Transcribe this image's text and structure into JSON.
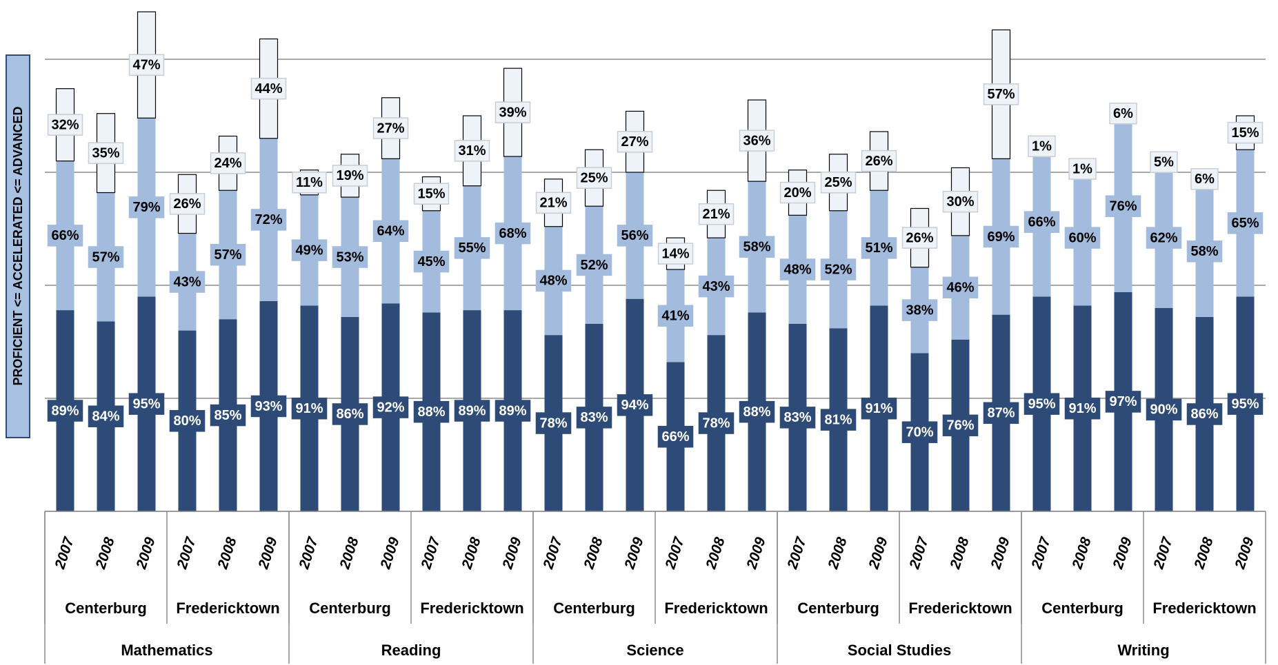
{
  "chart_data": {
    "type": "stacked-bar",
    "y_label": "PROFICIENT <= ACCELERATED <= ADVANCED",
    "categories": [
      "2007",
      "2008",
      "2009",
      "2007",
      "2008",
      "2009",
      "2007",
      "2008",
      "2009",
      "2007",
      "2008",
      "2009",
      "2007",
      "2008",
      "2009",
      "2007",
      "2008",
      "2009",
      "2007",
      "2008",
      "2009",
      "2007",
      "2008",
      "2009",
      "2007",
      "2008",
      "2009",
      "2007",
      "2008",
      "2009"
    ],
    "groups": [
      "Centerburg",
      "Fredericktown",
      "Centerburg",
      "Fredericktown",
      "Centerburg",
      "Fredericktown",
      "Centerburg",
      "Fredericktown",
      "Centerburg",
      "Fredericktown"
    ],
    "subjects": [
      "Mathematics",
      "Reading",
      "Science",
      "Social Studies",
      "Writing"
    ],
    "series": [
      {
        "color": "#2e4b77",
        "text_color": "#ffffff",
        "values": [
          89,
          84,
          95,
          80,
          85,
          93,
          91,
          86,
          92,
          88,
          89,
          89,
          78,
          83,
          94,
          66,
          78,
          88,
          83,
          81,
          91,
          70,
          76,
          87,
          95,
          91,
          97,
          90,
          86,
          95
        ],
        "value_labels": [
          "89%",
          "84%",
          "95%",
          "80%",
          "85%",
          "93%",
          "91%",
          "86%",
          "92%",
          "88%",
          "89%",
          "89%",
          "78%",
          "83%",
          "94%",
          "66%",
          "78%",
          "88%",
          "83%",
          "81%",
          "91%",
          "70%",
          "76%",
          "87%",
          "95%",
          "91%",
          "97%",
          "90%",
          "86%",
          "95%"
        ]
      },
      {
        "color": "#a3bbdc",
        "text_color": "#000000",
        "values": [
          66,
          57,
          79,
          43,
          57,
          72,
          49,
          53,
          64,
          45,
          55,
          68,
          48,
          52,
          56,
          41,
          43,
          58,
          48,
          52,
          51,
          38,
          46,
          69,
          66,
          60,
          76,
          62,
          58,
          65
        ],
        "value_labels": [
          "66%",
          "57%",
          "79%",
          "43%",
          "57%",
          "72%",
          "49%",
          "53%",
          "64%",
          "45%",
          "55%",
          "68%",
          "48%",
          "52%",
          "56%",
          "41%",
          "43%",
          "58%",
          "48%",
          "52%",
          "51%",
          "38%",
          "46%",
          "69%",
          "66%",
          "60%",
          "76%",
          "62%",
          "58%",
          "65%"
        ]
      },
      {
        "color": "#eef3fa",
        "text_color": "#000000",
        "values": [
          32,
          35,
          47,
          26,
          24,
          44,
          11,
          19,
          27,
          15,
          31,
          39,
          21,
          25,
          27,
          14,
          21,
          36,
          20,
          25,
          26,
          26,
          30,
          57,
          1,
          1,
          6,
          5,
          6,
          15
        ],
        "value_labels": [
          "32%",
          "35%",
          "47%",
          "26%",
          "24%",
          "44%",
          "11%",
          "19%",
          "27%",
          "15%",
          "31%",
          "39%",
          "21%",
          "25%",
          "27%",
          "14%",
          "21%",
          "36%",
          "20%",
          "25%",
          "26%",
          "26%",
          "30%",
          "57%",
          "1%",
          "1%",
          "6%",
          "5%",
          "6%",
          "15%"
        ]
      }
    ],
    "ylim": [
      0,
      225
    ],
    "yticks": [
      0,
      50,
      100,
      150,
      200
    ],
    "grid": true
  }
}
